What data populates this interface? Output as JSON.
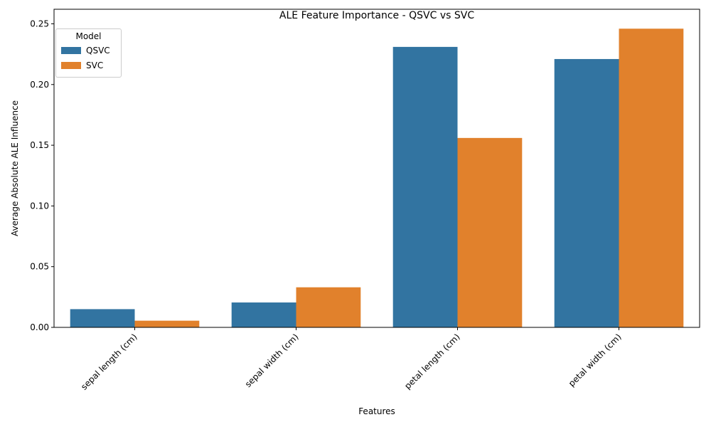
{
  "chart_data": {
    "type": "bar",
    "title": "ALE Feature Importance - QSVC vs SVC",
    "xlabel": "Features",
    "ylabel": "Average Absolute ALE Influence",
    "categories": [
      "sepal length (cm)",
      "sepal width (cm)",
      "petal length (cm)",
      "petal width (cm)"
    ],
    "series": [
      {
        "name": "QSVC",
        "color": "#3274a1",
        "values": [
          0.015,
          0.0205,
          0.231,
          0.221
        ]
      },
      {
        "name": "SVC",
        "color": "#e1812c",
        "values": [
          0.0055,
          0.033,
          0.156,
          0.246
        ]
      }
    ],
    "ylim": [
      0,
      0.262
    ],
    "yticks": [
      "0.00",
      "0.05",
      "0.10",
      "0.15",
      "0.20",
      "0.25"
    ],
    "grid": false,
    "legend": {
      "title": "Model",
      "position": "top-left"
    }
  }
}
